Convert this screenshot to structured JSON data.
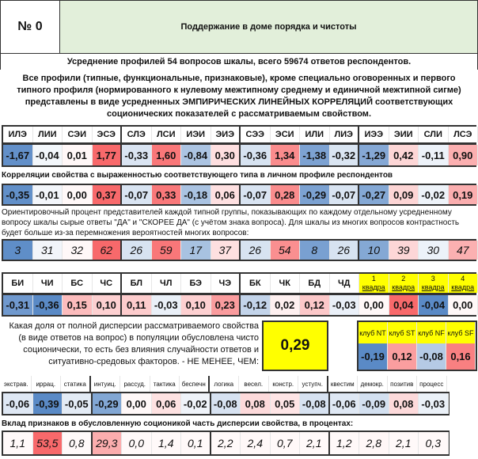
{
  "header": {
    "number": "№ 0",
    "title": "Поддержание в доме порядка и чистоты",
    "title_bg": "#e2efda"
  },
  "summary": "Усреднение профилей 54 вопросов шкалы, всего 59674 ответов респондентов.",
  "description": "Все профили (типные, функциональные, признаковые), кроме специально оговоренных и первого типного профиля (нормированного к нулевому межтипному среднему и единичной межтипной сигме) представлены в виде усредненных ЭМПИРИЧЕСКИХ ЛИНЕЙНЫХ КОРРЕЛЯЦИЙ соответствующих соционических показателей с рассматриваемым свойством.",
  "colors": {
    "positive": "#f8696b",
    "negative": "#5a8ac6",
    "highlight": "#ffff00"
  },
  "types": {
    "labels": [
      "ИЛЭ",
      "ЛИИ",
      "СЭИ",
      "ЭСЭ",
      "СЛЭ",
      "ЛСИ",
      "ИЭИ",
      "ЭИЭ",
      "СЭЭ",
      "ЭСИ",
      "ИЛИ",
      "ЛИЭ",
      "ИЭЭ",
      "ЭИИ",
      "СЛИ",
      "ЛСЭ"
    ],
    "profile": [
      "-1,67",
      "-0,04",
      "0,01",
      "1,77",
      "-0,33",
      "1,60",
      "-0,84",
      "0,30",
      "-0,36",
      "1,34",
      "-1,38",
      "-0,32",
      "-1,29",
      "0,42",
      "-0,11",
      "0,90"
    ],
    "corr_label": "Корреляции свойства с выраженностью соответствующего типа в личном профиле респондентов",
    "corr": [
      "-0,35",
      "-0,01",
      "0,00",
      "0,37",
      "-0,07",
      "0,33",
      "-0,18",
      "0,06",
      "-0,07",
      "0,28",
      "-0,29",
      "-0,07",
      "-0,27",
      "0,09",
      "-0,02",
      "0,19"
    ],
    "pct_label": "Ориентировочный процент представителей каждой типной группы, показывающих по каждому отдельному усредненному вопросу шкалы сырые ответы \"ДА\" и \"СКОРЕЕ ДА\" (с учётом знака вопроса). Для шкалы из многих вопросов контрастность будет больше из-за перемножения вероятностей многих вопросов:",
    "pct": [
      "3",
      "31",
      "32",
      "62",
      "26",
      "59",
      "17",
      "37",
      "26",
      "54",
      "8",
      "26",
      "10",
      "39",
      "30",
      "47"
    ]
  },
  "functions": {
    "labels": [
      "БИ",
      "ЧИ",
      "БС",
      "ЧС",
      "БЛ",
      "ЧЛ",
      "БЭ",
      "ЧЭ",
      "БК",
      "ЧК",
      "БД",
      "ЧД"
    ],
    "values": [
      "-0,31",
      "-0,36",
      "0,15",
      "0,10",
      "0,11",
      "-0,03",
      "0,10",
      "0,23",
      "-0,12",
      "0,02",
      "0,12",
      "-0,03"
    ],
    "quadra_labels": [
      [
        "1",
        "квадра"
      ],
      [
        "2",
        "квадра"
      ],
      [
        "3",
        "квадра"
      ],
      [
        "4",
        "квадра"
      ]
    ],
    "quadra_values": [
      "0,00",
      "0,04",
      "-0,04",
      "0,00"
    ]
  },
  "dispersion": {
    "text": "Какая доля от полной дисперсии рассматриваемого свойства (в виде ответов на вопрос) в популяции обусловлена чисто соционически, то есть без влияния случайности ответов и ситуативно-средовых факторов. - НЕ МЕНЕЕ, ЧЕМ:",
    "value": "0,29"
  },
  "clubs": {
    "labels": [
      "клуб NT",
      "клуб ST",
      "клуб NF",
      "клуб SF"
    ],
    "values": [
      "-0,19",
      "0,12",
      "-0,08",
      "0,16"
    ]
  },
  "signs": {
    "labels": [
      "экстрав.",
      "иррац.",
      "статика",
      "интуиц.",
      "рассуд.",
      "тактика",
      "беспечн",
      "логика",
      "весел.",
      "констр.",
      "уступч.",
      "квестим",
      "демокр.",
      "позитив",
      "процесс"
    ],
    "values": [
      "-0,06",
      "-0,39",
      "-0,05",
      "-0,29",
      "0,00",
      "0,06",
      "-0,02",
      "-0,08",
      "0,08",
      "0,05",
      "-0,08",
      "-0,06",
      "-0,09",
      "0,08",
      "-0,03"
    ],
    "contrib_label": "Вклад признаков в обусловленную соционикой часть дисперсии свойства, в процентах:",
    "contrib": [
      "1,1",
      "53,5",
      "0,8",
      "29,3",
      "0,0",
      "1,4",
      "0,1",
      "2,2",
      "2,4",
      "0,7",
      "2,1",
      "1,2",
      "2,8",
      "2,1",
      "0,3"
    ]
  }
}
